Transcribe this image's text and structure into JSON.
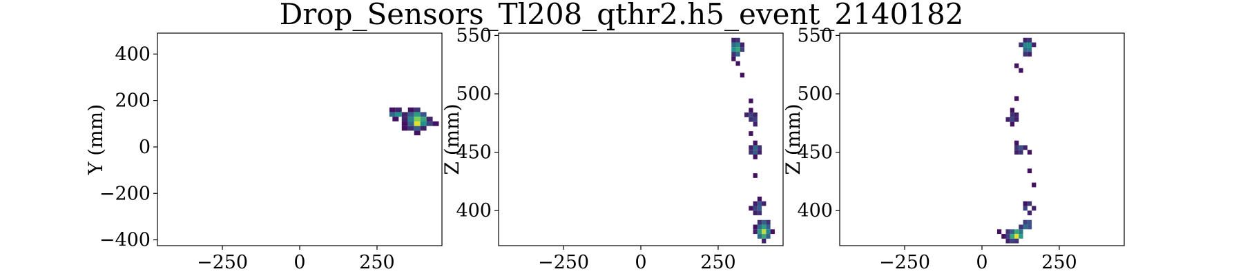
{
  "figure": {
    "title": "Drop_Sensors_Tl208_qthr2.h5_event_2140182"
  },
  "chart_data": [
    {
      "type": "heatmap",
      "title": "",
      "xlabel": "",
      "ylabel": "Y (mm)",
      "xlim": [
        -460,
        460
      ],
      "ylim": [
        -425,
        490
      ],
      "xticks": [
        -250,
        0,
        250
      ],
      "yticks": [
        -400,
        -200,
        0,
        200,
        400
      ],
      "xtick_labels": [
        "−250",
        "0",
        "250"
      ],
      "ytick_labels": [
        "−400",
        "−200",
        "0",
        "200",
        "400"
      ],
      "cell": [
        20,
        20
      ],
      "colormap": "viridis",
      "cells": [
        [
          300,
          160,
          0.05
        ],
        [
          320,
          160,
          0.1
        ],
        [
          300,
          140,
          0.35
        ],
        [
          320,
          140,
          0.5
        ],
        [
          340,
          140,
          0.1
        ],
        [
          310,
          120,
          0.05
        ],
        [
          360,
          160,
          0.05
        ],
        [
          380,
          160,
          0.15
        ],
        [
          360,
          140,
          0.3
        ],
        [
          380,
          140,
          0.55
        ],
        [
          400,
          140,
          0.25
        ],
        [
          340,
          120,
          0.1
        ],
        [
          360,
          120,
          0.45
        ],
        [
          380,
          120,
          0.8
        ],
        [
          400,
          120,
          0.6
        ],
        [
          420,
          120,
          0.1
        ],
        [
          340,
          100,
          0.05
        ],
        [
          360,
          100,
          0.35
        ],
        [
          380,
          100,
          0.95
        ],
        [
          400,
          100,
          0.5
        ],
        [
          420,
          100,
          0.2
        ],
        [
          440,
          100,
          0.05
        ],
        [
          340,
          80,
          0.05
        ],
        [
          360,
          80,
          0.15
        ],
        [
          380,
          80,
          0.3
        ],
        [
          400,
          80,
          0.1
        ],
        [
          380,
          60,
          0.05
        ]
      ]
    },
    {
      "type": "heatmap",
      "title": "",
      "xlabel": "",
      "ylabel": "Z (mm)",
      "xlim": [
        -460,
        460
      ],
      "ylim": [
        370,
        552
      ],
      "xticks": [
        -250,
        0,
        250
      ],
      "yticks": [
        400,
        450,
        500,
        550
      ],
      "xtick_labels": [
        "−250",
        "0",
        "250"
      ],
      "ytick_labels": [
        "400",
        "450",
        "500",
        "550"
      ],
      "cell": [
        14,
        4
      ],
      "colormap": "viridis",
      "cells": [
        [
          300,
          546,
          0.1
        ],
        [
          314,
          546,
          0.15
        ],
        [
          300,
          542,
          0.35
        ],
        [
          314,
          542,
          0.45
        ],
        [
          328,
          542,
          0.1
        ],
        [
          300,
          538,
          0.5
        ],
        [
          314,
          538,
          0.6
        ],
        [
          328,
          538,
          0.2
        ],
        [
          300,
          534,
          0.15
        ],
        [
          314,
          534,
          0.3
        ],
        [
          300,
          530,
          0.05
        ],
        [
          314,
          526,
          0.05
        ],
        [
          328,
          516,
          0.05
        ],
        [
          356,
          494,
          0.05
        ],
        [
          356,
          486,
          0.05
        ],
        [
          342,
          482,
          0.1
        ],
        [
          356,
          482,
          0.2
        ],
        [
          370,
          482,
          0.1
        ],
        [
          356,
          478,
          0.15
        ],
        [
          370,
          478,
          0.2
        ],
        [
          370,
          474,
          0.1
        ],
        [
          356,
          466,
          0.05
        ],
        [
          370,
          458,
          0.05
        ],
        [
          356,
          454,
          0.1
        ],
        [
          370,
          454,
          0.35
        ],
        [
          384,
          454,
          0.15
        ],
        [
          356,
          450,
          0.15
        ],
        [
          370,
          450,
          0.3
        ],
        [
          384,
          450,
          0.1
        ],
        [
          370,
          446,
          0.05
        ],
        [
          370,
          430,
          0.05
        ],
        [
          384,
          410,
          0.05
        ],
        [
          370,
          406,
          0.1
        ],
        [
          384,
          406,
          0.25
        ],
        [
          398,
          406,
          0.1
        ],
        [
          356,
          402,
          0.05
        ],
        [
          370,
          402,
          0.2
        ],
        [
          384,
          402,
          0.3
        ],
        [
          370,
          398,
          0.1
        ],
        [
          384,
          398,
          0.15
        ],
        [
          384,
          390,
          0.15
        ],
        [
          398,
          390,
          0.3
        ],
        [
          412,
          390,
          0.15
        ],
        [
          370,
          386,
          0.05
        ],
        [
          384,
          386,
          0.35
        ],
        [
          398,
          386,
          0.55
        ],
        [
          412,
          386,
          0.3
        ],
        [
          370,
          382,
          0.1
        ],
        [
          384,
          382,
          0.55
        ],
        [
          398,
          382,
          0.9
        ],
        [
          412,
          382,
          0.45
        ],
        [
          426,
          382,
          0.05
        ],
        [
          384,
          378,
          0.35
        ],
        [
          398,
          378,
          0.6
        ],
        [
          412,
          378,
          0.3
        ],
        [
          398,
          374,
          0.1
        ]
      ]
    },
    {
      "type": "heatmap",
      "title": "",
      "xlabel": "",
      "ylabel": "Z (mm)",
      "xlim": [
        -460,
        460
      ],
      "ylim": [
        370,
        552
      ],
      "xticks": [
        -250,
        0,
        250
      ],
      "yticks": [
        400,
        450,
        500,
        550
      ],
      "xtick_labels": [
        "−250",
        "0",
        "250"
      ],
      "ytick_labels": [
        "400",
        "450",
        "500",
        "550"
      ],
      "cell": [
        14,
        4
      ],
      "colormap": "viridis",
      "cells": [
        [
          140,
          546,
          0.1
        ],
        [
          154,
          546,
          0.15
        ],
        [
          126,
          542,
          0.15
        ],
        [
          140,
          542,
          0.45
        ],
        [
          154,
          542,
          0.5
        ],
        [
          168,
          542,
          0.1
        ],
        [
          140,
          538,
          0.35
        ],
        [
          154,
          538,
          0.4
        ],
        [
          140,
          534,
          0.15
        ],
        [
          154,
          534,
          0.1
        ],
        [
          112,
          524,
          0.05
        ],
        [
          126,
          520,
          0.05
        ],
        [
          112,
          496,
          0.05
        ],
        [
          98,
          486,
          0.05
        ],
        [
          98,
          482,
          0.15
        ],
        [
          112,
          482,
          0.1
        ],
        [
          84,
          478,
          0.1
        ],
        [
          98,
          478,
          0.2
        ],
        [
          112,
          478,
          0.1
        ],
        [
          98,
          474,
          0.05
        ],
        [
          112,
          458,
          0.05
        ],
        [
          112,
          454,
          0.15
        ],
        [
          126,
          454,
          0.25
        ],
        [
          140,
          454,
          0.1
        ],
        [
          112,
          450,
          0.1
        ],
        [
          126,
          450,
          0.15
        ],
        [
          154,
          450,
          0.05
        ],
        [
          154,
          434,
          0.05
        ],
        [
          168,
          422,
          0.05
        ],
        [
          140,
          406,
          0.05
        ],
        [
          154,
          406,
          0.15
        ],
        [
          140,
          402,
          0.2
        ],
        [
          168,
          402,
          0.1
        ],
        [
          154,
          398,
          0.1
        ],
        [
          140,
          390,
          0.2
        ],
        [
          154,
          390,
          0.25
        ],
        [
          126,
          386,
          0.15
        ],
        [
          140,
          386,
          0.35
        ],
        [
          154,
          386,
          0.25
        ],
        [
          56,
          382,
          0.05
        ],
        [
          84,
          382,
          0.15
        ],
        [
          98,
          382,
          0.3
        ],
        [
          112,
          382,
          0.6
        ],
        [
          126,
          382,
          0.4
        ],
        [
          70,
          378,
          0.05
        ],
        [
          84,
          378,
          0.2
        ],
        [
          98,
          378,
          0.6
        ],
        [
          112,
          378,
          0.95
        ],
        [
          126,
          378,
          0.55
        ],
        [
          84,
          374,
          0.1
        ],
        [
          98,
          374,
          0.2
        ],
        [
          112,
          374,
          0.15
        ]
      ]
    }
  ]
}
